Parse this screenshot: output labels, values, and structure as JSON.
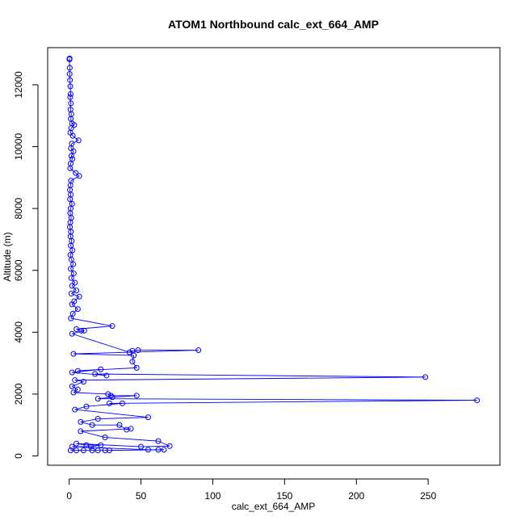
{
  "chart_data": {
    "type": "line",
    "title": "ATOM1 Northbound calc_ext_664_AMP",
    "xlabel": "calc_ext_664_AMP",
    "ylabel": "Altitude (m)",
    "xlim": [
      -15,
      300
    ],
    "ylim": [
      -300,
      13200
    ],
    "xticks": [
      0,
      50,
      100,
      150,
      200,
      250
    ],
    "yticks": [
      0,
      2000,
      4000,
      6000,
      8000,
      10000,
      12000
    ],
    "grid": false,
    "legend": "none",
    "series_color": "#0000ff",
    "marker": "open-circle",
    "series": [
      {
        "points": [
          [
            0.3,
            12850
          ],
          [
            0.2,
            12820
          ],
          [
            0.4,
            12550
          ],
          [
            0.3,
            12350
          ],
          [
            0.6,
            12150
          ],
          [
            0.8,
            11950
          ],
          [
            1.0,
            11700
          ],
          [
            0.7,
            11600
          ],
          [
            1.2,
            11400
          ],
          [
            0.9,
            11200
          ],
          [
            1.5,
            11050
          ],
          [
            1.1,
            10900
          ],
          [
            2.0,
            10750
          ],
          [
            3.5,
            10700
          ],
          [
            1.4,
            10600
          ],
          [
            0.8,
            10450
          ],
          [
            2.5,
            10350
          ],
          [
            6.5,
            10200
          ],
          [
            1.8,
            10100
          ],
          [
            1.2,
            9950
          ],
          [
            3.0,
            9850
          ],
          [
            1.5,
            9700
          ],
          [
            2.2,
            9600
          ],
          [
            1.0,
            9450
          ],
          [
            0.7,
            9300
          ],
          [
            4.5,
            9150
          ],
          [
            7.0,
            9050
          ],
          [
            1.3,
            8900
          ],
          [
            0.9,
            8750
          ],
          [
            0.5,
            8600
          ],
          [
            1.1,
            8450
          ],
          [
            0.6,
            8300
          ],
          [
            2.0,
            8150
          ],
          [
            1.0,
            8000
          ],
          [
            0.7,
            7850
          ],
          [
            1.4,
            7700
          ],
          [
            0.8,
            7550
          ],
          [
            0.5,
            7400
          ],
          [
            1.2,
            7250
          ],
          [
            0.9,
            7100
          ],
          [
            1.8,
            6950
          ],
          [
            1.1,
            6800
          ],
          [
            2.3,
            6650
          ],
          [
            0.8,
            6500
          ],
          [
            1.5,
            6350
          ],
          [
            2.8,
            6200
          ],
          [
            1.0,
            6050
          ],
          [
            3.2,
            5900
          ],
          [
            1.5,
            5750
          ],
          [
            4.0,
            5600
          ],
          [
            2.0,
            5500
          ],
          [
            5.0,
            5350
          ],
          [
            1.5,
            5250
          ],
          [
            7.0,
            5150
          ],
          [
            3.5,
            5000
          ],
          [
            2.0,
            4900
          ],
          [
            6.0,
            4750
          ],
          [
            2.5,
            4600
          ],
          [
            1.2,
            4450
          ],
          [
            30.0,
            4200
          ],
          [
            5.0,
            4100
          ],
          [
            8.5,
            4050
          ],
          [
            10.5,
            4050
          ],
          [
            2.0,
            3950
          ],
          [
            42.0,
            3350
          ],
          [
            44.0,
            3400
          ],
          [
            48.0,
            3420
          ],
          [
            90.0,
            3420
          ],
          [
            3.0,
            3300
          ],
          [
            45.0,
            3250
          ],
          [
            44.0,
            3050
          ],
          [
            47.0,
            2850
          ],
          [
            6.0,
            2750
          ],
          [
            22.0,
            2800
          ],
          [
            2.0,
            2700
          ],
          [
            26.0,
            2600
          ],
          [
            18.0,
            2650
          ],
          [
            248.0,
            2550
          ],
          [
            4.0,
            2450
          ],
          [
            10.0,
            2400
          ],
          [
            2.0,
            2250
          ],
          [
            6.0,
            2150
          ],
          [
            3.0,
            2050
          ],
          [
            27.0,
            2000
          ],
          [
            29.0,
            1950
          ],
          [
            47.0,
            1950
          ],
          [
            30.0,
            1900
          ],
          [
            20.0,
            1850
          ],
          [
            284.0,
            1800
          ],
          [
            28.0,
            1700
          ],
          [
            37.0,
            1700
          ],
          [
            12.0,
            1600
          ],
          [
            4.0,
            1500
          ],
          [
            55.0,
            1250
          ],
          [
            20.0,
            1200
          ],
          [
            8.0,
            1100
          ],
          [
            16.0,
            1000
          ],
          [
            35.0,
            1000
          ],
          [
            40.0,
            850
          ],
          [
            43.0,
            880
          ],
          [
            8.0,
            800
          ],
          [
            25.0,
            600
          ],
          [
            62.0,
            480
          ],
          [
            70.0,
            320
          ],
          [
            50.0,
            300
          ],
          [
            5.0,
            400
          ],
          [
            12.0,
            350
          ],
          [
            22.0,
            350
          ],
          [
            15.0,
            300
          ],
          [
            2.0,
            300
          ],
          [
            55.0,
            200
          ],
          [
            62.0,
            200
          ],
          [
            66.0,
            200
          ],
          [
            28.0,
            180
          ],
          [
            25.0,
            180
          ],
          [
            20.0,
            180
          ],
          [
            16.0,
            180
          ],
          [
            10.0,
            180
          ],
          [
            5.0,
            180
          ],
          [
            1.0,
            180
          ]
        ]
      }
    ]
  }
}
